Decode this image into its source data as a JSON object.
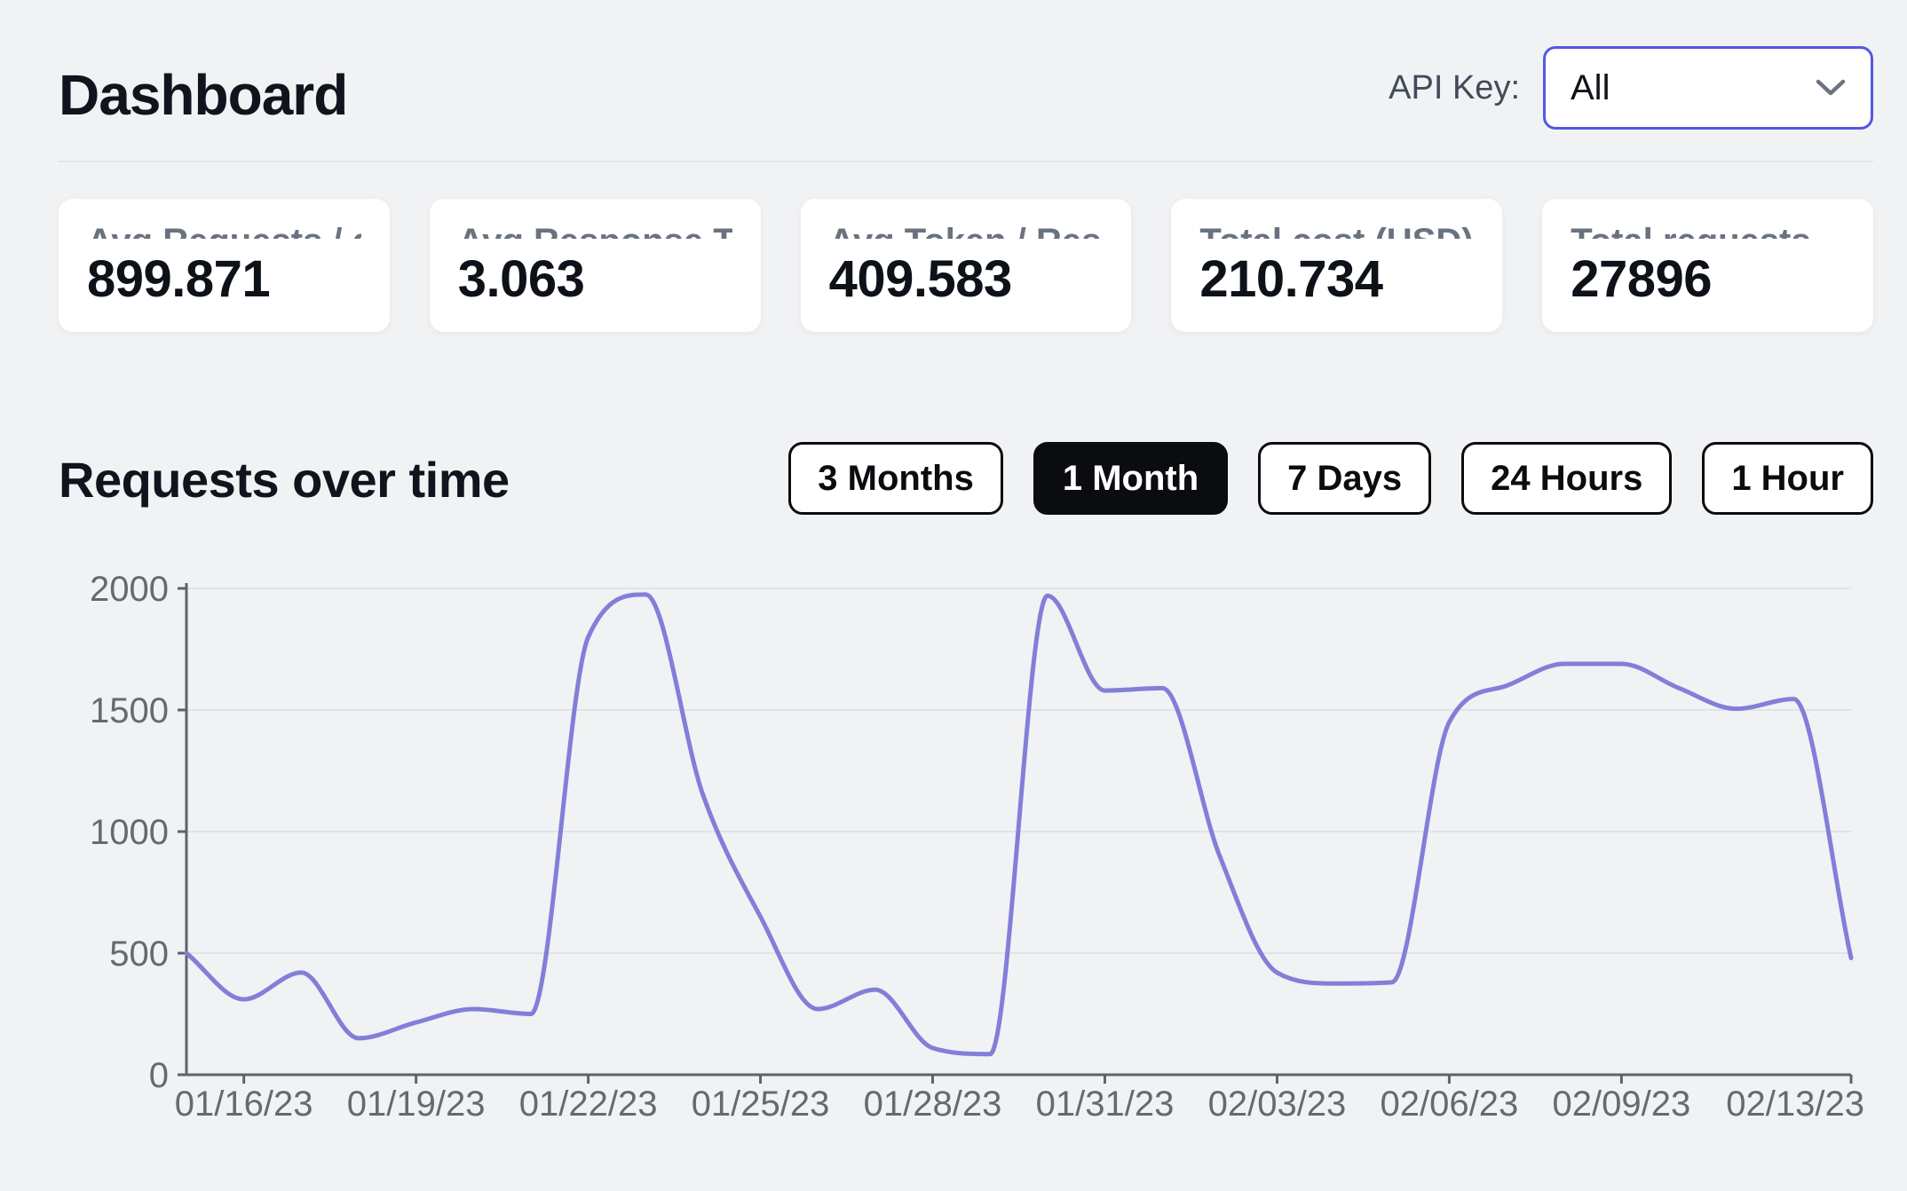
{
  "header": {
    "title": "Dashboard",
    "api_key_label": "API Key:",
    "api_key_value": "All"
  },
  "stats": [
    {
      "label": "Avg Requests / day",
      "value": "899.871"
    },
    {
      "label": "Avg Response Tim…",
      "value": "3.063"
    },
    {
      "label": "Avg Token / Respo…",
      "value": "409.583"
    },
    {
      "label": "Total cost (USD)",
      "value": "210.734"
    },
    {
      "label": "Total requests",
      "value": "27896"
    }
  ],
  "section": {
    "title": "Requests over time"
  },
  "ranges": {
    "options": [
      "3 Months",
      "1 Month",
      "7 Days",
      "24 Hours",
      "1 Hour"
    ],
    "active": "1 Month"
  },
  "chart_data": {
    "type": "line",
    "title": "Requests over time",
    "xlabel": "",
    "ylabel": "",
    "x": [
      "01/15/23",
      "01/16/23",
      "01/17/23",
      "01/18/23",
      "01/19/23",
      "01/20/23",
      "01/21/23",
      "01/22/23",
      "01/23/23",
      "01/24/23",
      "01/25/23",
      "01/26/23",
      "01/27/23",
      "01/28/23",
      "01/29/23",
      "01/30/23",
      "01/31/23",
      "02/01/23",
      "02/02/23",
      "02/03/23",
      "02/04/23",
      "02/05/23",
      "02/06/23",
      "02/07/23",
      "02/08/23",
      "02/09/23",
      "02/10/23",
      "02/11/23",
      "02/12/23",
      "02/13/23"
    ],
    "values": [
      500,
      310,
      420,
      150,
      215,
      270,
      250,
      1800,
      1975,
      1150,
      650,
      270,
      350,
      110,
      85,
      1970,
      1580,
      1590,
      900,
      420,
      375,
      380,
      1450,
      1600,
      1690,
      1690,
      1590,
      1505,
      1545,
      480
    ],
    "x_tick_labels": [
      "01/16/23",
      "01/19/23",
      "01/22/23",
      "01/25/23",
      "01/28/23",
      "01/31/23",
      "02/03/23",
      "02/06/23",
      "02/09/23",
      "02/13/23"
    ],
    "x_tick_indices": [
      1,
      4,
      7,
      10,
      13,
      16,
      19,
      22,
      25,
      29
    ],
    "y_ticks": [
      0,
      500,
      1000,
      1500,
      2000
    ],
    "ylim": [
      0,
      2000
    ],
    "grid": "horizontal",
    "legend": "none",
    "line_color": "#837ed8",
    "axis_color": "#5f6368",
    "tick_label_color": "#66696f",
    "grid_color": "#e2e3e8"
  }
}
